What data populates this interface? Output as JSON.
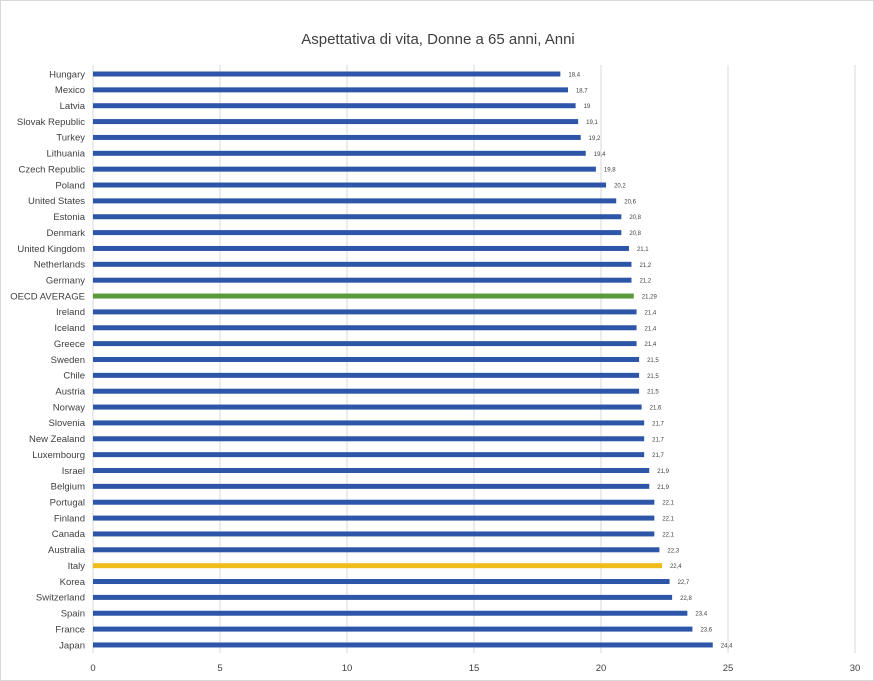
{
  "chart_data": {
    "type": "bar",
    "orientation": "horizontal",
    "title": "Aspettativa di vita, Donne a 65 anni, Anni",
    "xlabel": "",
    "ylabel": "",
    "xlim": [
      0,
      30
    ],
    "x_ticks": [
      "0",
      "5",
      "10",
      "15",
      "20",
      "25",
      "30"
    ],
    "grid": "vertical",
    "colors": {
      "default": "#2e56a8",
      "oecd": "#5b9a3b",
      "italy": "#f0bc1c"
    },
    "bars": [
      {
        "label": "Hungary",
        "value": 18.4,
        "value_label": "18,4",
        "color": "default"
      },
      {
        "label": "Mexico",
        "value": 18.7,
        "value_label": "18,7",
        "color": "default"
      },
      {
        "label": "Latvia",
        "value": 19,
        "value_label": "19",
        "color": "default"
      },
      {
        "label": "Slovak Republic",
        "value": 19.1,
        "value_label": "19,1",
        "color": "default"
      },
      {
        "label": "Turkey",
        "value": 19.2,
        "value_label": "19,2",
        "color": "default"
      },
      {
        "label": "Lithuania",
        "value": 19.4,
        "value_label": "19,4",
        "color": "default"
      },
      {
        "label": "Czech Republic",
        "value": 19.8,
        "value_label": "19,8",
        "color": "default"
      },
      {
        "label": "Poland",
        "value": 20.2,
        "value_label": "20,2",
        "color": "default"
      },
      {
        "label": "United States",
        "value": 20.6,
        "value_label": "20,6",
        "color": "default"
      },
      {
        "label": "Estonia",
        "value": 20.8,
        "value_label": "20,8",
        "color": "default"
      },
      {
        "label": "Denmark",
        "value": 20.8,
        "value_label": "20,8",
        "color": "default"
      },
      {
        "label": "United Kingdom",
        "value": 21.1,
        "value_label": "21,1",
        "color": "default"
      },
      {
        "label": "Netherlands",
        "value": 21.2,
        "value_label": "21,2",
        "color": "default"
      },
      {
        "label": "Germany",
        "value": 21.2,
        "value_label": "21,2",
        "color": "default"
      },
      {
        "label": "OECD AVERAGE",
        "value": 21.29,
        "value_label": "21,29",
        "color": "oecd"
      },
      {
        "label": "Ireland",
        "value": 21.4,
        "value_label": "21,4",
        "color": "default"
      },
      {
        "label": "Iceland",
        "value": 21.4,
        "value_label": "21,4",
        "color": "default"
      },
      {
        "label": "Greece",
        "value": 21.4,
        "value_label": "21,4",
        "color": "default"
      },
      {
        "label": "Sweden",
        "value": 21.5,
        "value_label": "21,5",
        "color": "default"
      },
      {
        "label": "Chile",
        "value": 21.5,
        "value_label": "21,5",
        "color": "default"
      },
      {
        "label": "Austria",
        "value": 21.5,
        "value_label": "21,5",
        "color": "default"
      },
      {
        "label": "Norway",
        "value": 21.6,
        "value_label": "21,6",
        "color": "default"
      },
      {
        "label": "Slovenia",
        "value": 21.7,
        "value_label": "21,7",
        "color": "default"
      },
      {
        "label": "New Zealand",
        "value": 21.7,
        "value_label": "21,7",
        "color": "default"
      },
      {
        "label": "Luxembourg",
        "value": 21.7,
        "value_label": "21,7",
        "color": "default"
      },
      {
        "label": "Israel",
        "value": 21.9,
        "value_label": "21,9",
        "color": "default"
      },
      {
        "label": "Belgium",
        "value": 21.9,
        "value_label": "21,9",
        "color": "default"
      },
      {
        "label": "Portugal",
        "value": 22.1,
        "value_label": "22,1",
        "color": "default"
      },
      {
        "label": "Finland",
        "value": 22.1,
        "value_label": "22,1",
        "color": "default"
      },
      {
        "label": "Canada",
        "value": 22.1,
        "value_label": "22,1",
        "color": "default"
      },
      {
        "label": "Australia",
        "value": 22.3,
        "value_label": "22,3",
        "color": "default"
      },
      {
        "label": "Italy",
        "value": 22.4,
        "value_label": "22,4",
        "color": "italy"
      },
      {
        "label": "Korea",
        "value": 22.7,
        "value_label": "22,7",
        "color": "default"
      },
      {
        "label": "Switzerland",
        "value": 22.8,
        "value_label": "22,8",
        "color": "default"
      },
      {
        "label": "Spain",
        "value": 23.4,
        "value_label": "23,4",
        "color": "default"
      },
      {
        "label": "France",
        "value": 23.6,
        "value_label": "23,6",
        "color": "default"
      },
      {
        "label": "Japan",
        "value": 24.4,
        "value_label": "24,4",
        "color": "default"
      }
    ]
  }
}
